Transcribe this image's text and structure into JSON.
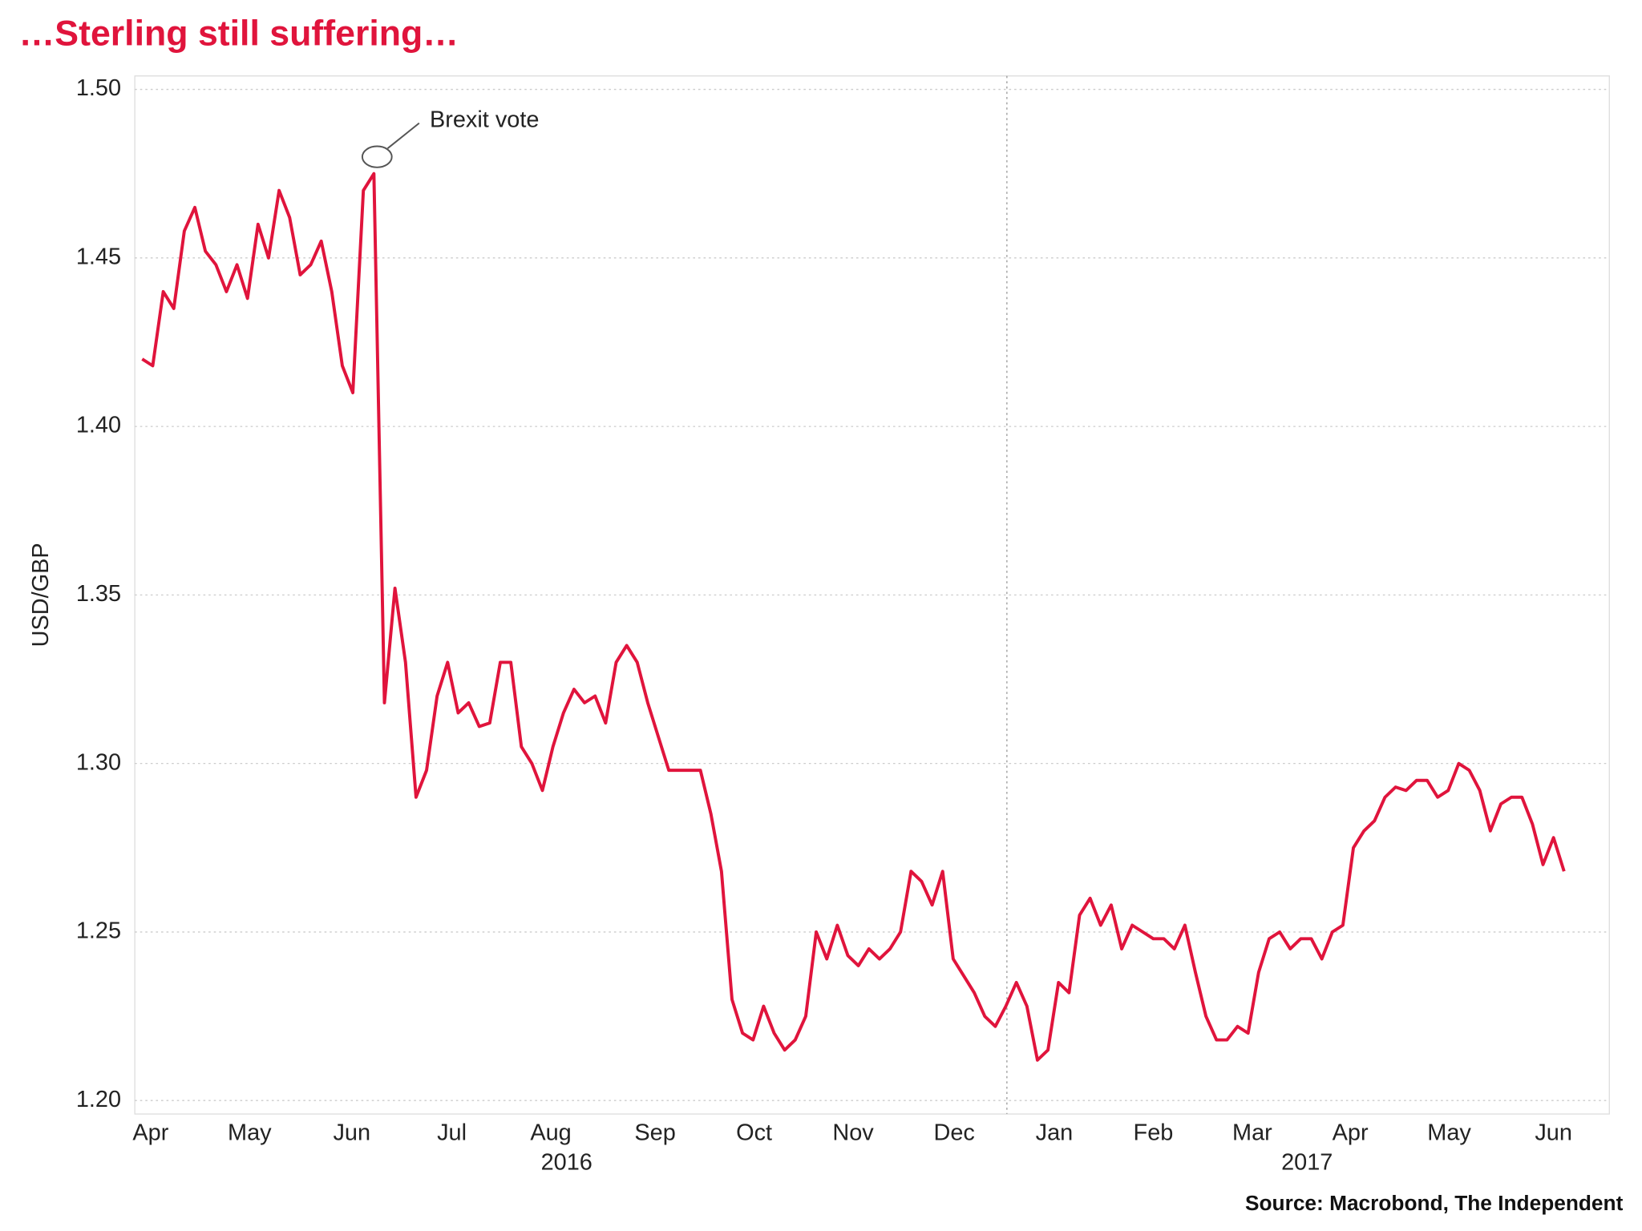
{
  "chart_data": {
    "type": "line",
    "title": "…Sterling still suffering…",
    "source": "Source: Macrobond, The Independent",
    "y_label": "USD/GBP",
    "series": [
      {
        "name": "USD/GBP",
        "color": "#e0143c",
        "values": [
          1.42,
          1.418,
          1.44,
          1.435,
          1.458,
          1.465,
          1.452,
          1.448,
          1.44,
          1.448,
          1.438,
          1.46,
          1.45,
          1.47,
          1.462,
          1.445,
          1.448,
          1.455,
          1.44,
          1.418,
          1.41,
          1.47,
          1.475,
          1.318,
          1.352,
          1.33,
          1.29,
          1.298,
          1.32,
          1.33,
          1.315,
          1.318,
          1.311,
          1.312,
          1.33,
          1.33,
          1.305,
          1.3,
          1.292,
          1.305,
          1.315,
          1.322,
          1.318,
          1.32,
          1.312,
          1.33,
          1.335,
          1.33,
          1.318,
          1.308,
          1.298,
          1.298,
          1.298,
          1.298,
          1.285,
          1.268,
          1.23,
          1.22,
          1.218,
          1.228,
          1.22,
          1.215,
          1.218,
          1.225,
          1.25,
          1.242,
          1.252,
          1.243,
          1.24,
          1.245,
          1.242,
          1.245,
          1.25,
          1.268,
          1.265,
          1.258,
          1.268,
          1.242,
          1.237,
          1.232,
          1.225,
          1.222,
          1.228,
          1.235,
          1.228,
          1.212,
          1.215,
          1.235,
          1.232,
          1.255,
          1.26,
          1.252,
          1.258,
          1.245,
          1.252,
          1.25,
          1.248,
          1.248,
          1.245,
          1.252,
          1.238,
          1.225,
          1.218,
          1.218,
          1.222,
          1.22,
          1.238,
          1.248,
          1.25,
          1.245,
          1.248,
          1.248,
          1.242,
          1.25,
          1.252,
          1.275,
          1.28,
          1.283,
          1.29,
          1.293,
          1.292,
          1.295,
          1.295,
          1.29,
          1.292,
          1.3,
          1.298,
          1.292,
          1.28,
          1.288,
          1.29,
          1.29,
          1.282,
          1.27,
          1.278,
          1.268
        ]
      }
    ],
    "xlim": [
      -0.7,
      139.3
    ],
    "xticks": [
      {
        "value": 0.8,
        "label": "Apr"
      },
      {
        "value": 10.2,
        "label": "May"
      },
      {
        "value": 19.9,
        "label": "Jun"
      },
      {
        "value": 29.4,
        "label": "Jul"
      },
      {
        "value": 38.8,
        "label": "Aug"
      },
      {
        "value": 48.7,
        "label": "Sep"
      },
      {
        "value": 58.1,
        "label": "Oct"
      },
      {
        "value": 67.5,
        "label": "Nov"
      },
      {
        "value": 77.1,
        "label": "Dec"
      },
      {
        "value": 86.6,
        "label": "Jan"
      },
      {
        "value": 96,
        "label": "Feb"
      },
      {
        "value": 105.4,
        "label": "Mar"
      },
      {
        "value": 114.7,
        "label": "Apr"
      },
      {
        "value": 124.1,
        "label": "May"
      },
      {
        "value": 134,
        "label": "Jun"
      }
    ],
    "year_labels": [
      {
        "value": 40.3,
        "label": "2016"
      },
      {
        "value": 110.6,
        "label": "2017"
      }
    ],
    "vlines": [
      82.1
    ],
    "ylim": [
      1.196,
      1.504
    ],
    "yticks": [
      {
        "value": 1.2,
        "label": "1.20"
      },
      1.25,
      {
        "value": 1.3,
        "label": "1.30"
      },
      1.35,
      {
        "value": 1.4,
        "label": "1.40"
      },
      1.45,
      {
        "value": 1.5,
        "label": "1.50"
      }
    ],
    "grid": true,
    "annotations": [
      {
        "text": "Brexit vote",
        "x": 22.3,
        "y": 1.48
      }
    ]
  }
}
